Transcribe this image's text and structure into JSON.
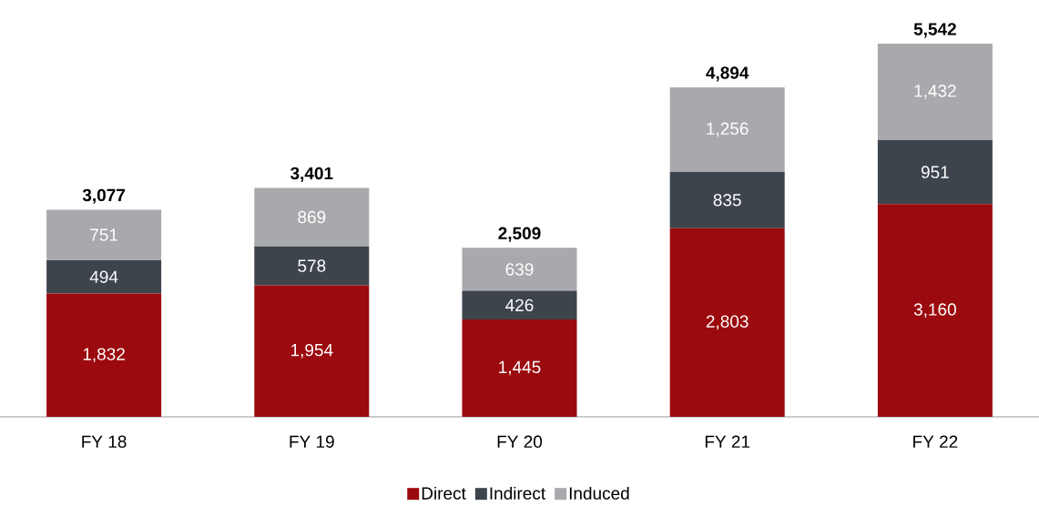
{
  "chart_data": {
    "type": "bar",
    "stacked": true,
    "categories": [
      "FY 18",
      "FY 19",
      "FY 20",
      "FY 21",
      "FY 22"
    ],
    "series": [
      {
        "name": "Direct",
        "color": "#9b0a0e",
        "values": [
          1832,
          1954,
          1445,
          2803,
          3160
        ],
        "value_labels": [
          "1,832",
          "1,954",
          "1,445",
          "2,803",
          "3,160"
        ]
      },
      {
        "name": "Indirect",
        "color": "#3d444c",
        "values": [
          494,
          578,
          426,
          835,
          951
        ],
        "value_labels": [
          "494",
          "578",
          "426",
          "835",
          "951"
        ]
      },
      {
        "name": "Induced",
        "color": "#a7a9ac",
        "values": [
          751,
          869,
          639,
          1256,
          1432
        ],
        "value_labels": [
          "751",
          "869",
          "639",
          "1,256",
          "1,432"
        ]
      }
    ],
    "totals": [
      "3,077",
      "3,401",
      "2,509",
      "4,894",
      "5,542"
    ],
    "legend": "bottom"
  }
}
